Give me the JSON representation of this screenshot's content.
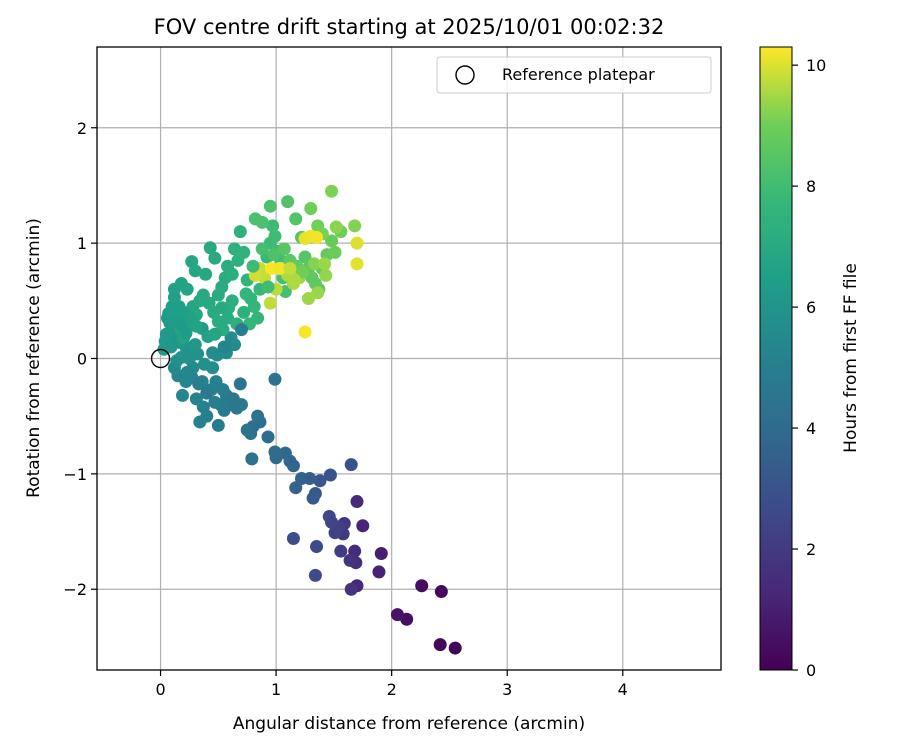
{
  "chart_data": {
    "type": "scatter",
    "title": "FOV centre drift starting at 2025/10/01 00:02:32",
    "xlabel": "Angular distance from reference (arcmin)",
    "ylabel": "Rotation from reference (arcmin)",
    "xlim": [
      -0.55,
      4.85
    ],
    "ylim": [
      -2.7,
      2.7
    ],
    "xticks": [
      0,
      1,
      2,
      3,
      4
    ],
    "yticks": [
      -2,
      -1,
      0,
      1,
      2
    ],
    "grid": true,
    "legend": {
      "placement": "top-right",
      "entries": [
        "Reference platepar"
      ]
    },
    "reference_point": {
      "x": 0,
      "y": 0,
      "label": "Reference platepar"
    },
    "colorbar": {
      "label": "Hours from first FF file",
      "colormap": "viridis",
      "range": [
        0,
        10.3
      ],
      "ticks": [
        0,
        2,
        4,
        6,
        8,
        10
      ]
    },
    "points": [
      [
        2.55,
        -2.51,
        0.1
      ],
      [
        2.42,
        -2.48,
        0.2
      ],
      [
        2.43,
        -2.02,
        0.3
      ],
      [
        2.26,
        -1.97,
        0.4
      ],
      [
        2.13,
        -2.26,
        0.5
      ],
      [
        2.05,
        -2.22,
        0.6
      ],
      [
        1.91,
        -1.69,
        1.0
      ],
      [
        1.89,
        -1.85,
        1.1
      ],
      [
        1.75,
        -1.45,
        1.2
      ],
      [
        1.7,
        -1.97,
        1.3
      ],
      [
        1.7,
        -1.24,
        1.4
      ],
      [
        1.68,
        -1.67,
        1.5
      ],
      [
        1.69,
        -1.77,
        1.6
      ],
      [
        1.65,
        -2.0,
        1.7
      ],
      [
        1.64,
        -1.75,
        1.8
      ],
      [
        1.59,
        -1.43,
        1.9
      ],
      [
        1.58,
        -1.52,
        2.0
      ],
      [
        1.56,
        -1.67,
        2.1
      ],
      [
        1.54,
        -1.46,
        2.2
      ],
      [
        1.51,
        -1.51,
        2.3
      ],
      [
        1.48,
        -1.42,
        2.4
      ],
      [
        1.46,
        -1.37,
        2.5
      ],
      [
        1.35,
        -1.63,
        2.6
      ],
      [
        1.34,
        -1.88,
        2.7
      ],
      [
        1.15,
        -1.56,
        2.8
      ],
      [
        1.65,
        -0.92,
        2.9
      ],
      [
        1.47,
        -1.01,
        3.0
      ],
      [
        1.38,
        -1.06,
        3.1
      ],
      [
        1.34,
        -1.17,
        3.2
      ],
      [
        1.32,
        -1.21,
        3.3
      ],
      [
        1.29,
        -1.04,
        3.4
      ],
      [
        1.22,
        -1.04,
        3.5
      ],
      [
        1.17,
        -1.12,
        3.6
      ],
      [
        1.15,
        -0.93,
        3.7
      ],
      [
        1.12,
        -0.89,
        3.8
      ],
      [
        1.08,
        -0.82,
        3.9
      ],
      [
        1.0,
        -0.86,
        4.0
      ],
      [
        0.99,
        -0.81,
        4.05
      ],
      [
        0.93,
        -0.68,
        4.1
      ],
      [
        0.86,
        -0.55,
        4.15
      ],
      [
        0.8,
        -0.59,
        4.2
      ],
      [
        0.79,
        -0.87,
        4.25
      ],
      [
        0.78,
        -0.65,
        4.3
      ],
      [
        0.84,
        -0.5,
        4.35
      ],
      [
        0.75,
        -0.62,
        4.4
      ],
      [
        0.99,
        -0.18,
        4.45
      ],
      [
        0.7,
        -0.4,
        4.5
      ],
      [
        0.69,
        -0.22,
        4.55
      ],
      [
        0.66,
        -0.43,
        4.6
      ],
      [
        0.6,
        -0.4,
        4.65
      ],
      [
        0.57,
        -0.32,
        4.7
      ],
      [
        0.55,
        -0.45,
        4.75
      ],
      [
        0.52,
        -0.4,
        4.8
      ],
      [
        0.5,
        -0.58,
        4.85
      ],
      [
        0.47,
        -0.38,
        4.9
      ],
      [
        0.44,
        -0.27,
        4.95
      ],
      [
        0.4,
        -0.5,
        5.0
      ],
      [
        0.37,
        -0.42,
        5.05
      ],
      [
        0.34,
        -0.55,
        5.1
      ],
      [
        0.36,
        -0.2,
        5.15
      ],
      [
        0.31,
        -0.35,
        5.2
      ],
      [
        0.27,
        -0.16,
        5.25
      ],
      [
        0.22,
        -0.2,
        5.3
      ],
      [
        0.19,
        -0.32,
        5.35
      ],
      [
        0.15,
        -0.15,
        5.4
      ],
      [
        0.12,
        -0.08,
        5.45
      ],
      [
        0.64,
        0.12,
        5.5
      ],
      [
        0.61,
        0.18,
        5.6
      ],
      [
        0.57,
        0.05,
        5.65
      ],
      [
        0.49,
        0.03,
        5.7
      ],
      [
        0.45,
        -0.08,
        5.75
      ],
      [
        0.38,
        -0.05,
        5.8
      ],
      [
        0.32,
        0.04,
        5.85
      ],
      [
        0.27,
        0.06,
        5.9
      ],
      [
        0.22,
        0.1,
        5.95
      ],
      [
        0.18,
        0.01,
        6.0
      ],
      [
        0.16,
        0.14,
        6.05
      ],
      [
        0.13,
        0.2,
        6.1
      ],
      [
        0.1,
        0.25,
        6.15
      ],
      [
        0.08,
        0.31,
        6.2
      ],
      [
        0.06,
        0.35,
        6.25
      ],
      [
        0.05,
        0.21,
        6.3
      ],
      [
        0.04,
        0.15,
        6.35
      ],
      [
        0.03,
        0.08,
        6.4
      ],
      [
        0.07,
        0.39,
        6.45
      ],
      [
        0.1,
        0.45,
        6.5
      ],
      [
        0.12,
        0.53,
        6.55
      ],
      [
        0.14,
        0.35,
        6.6
      ],
      [
        0.17,
        0.25,
        6.65
      ],
      [
        0.2,
        0.18,
        6.7
      ],
      [
        0.25,
        0.3,
        6.75
      ],
      [
        0.28,
        0.45,
        6.8
      ],
      [
        0.31,
        0.38,
        6.85
      ],
      [
        0.34,
        0.5,
        6.9
      ],
      [
        0.37,
        0.55,
        6.95
      ],
      [
        0.42,
        0.48,
        7.0
      ],
      [
        0.46,
        0.4,
        7.05
      ],
      [
        0.5,
        0.32,
        7.1
      ],
      [
        0.54,
        0.25,
        7.15
      ],
      [
        0.59,
        0.44,
        7.2
      ],
      [
        0.62,
        0.5,
        7.25
      ],
      [
        0.12,
        0.6,
        6.6
      ],
      [
        0.18,
        0.65,
        6.7
      ],
      [
        0.23,
        0.6,
        6.75
      ],
      [
        0.27,
        0.84,
        6.8
      ],
      [
        0.3,
        0.76,
        6.85
      ],
      [
        0.39,
        0.73,
        6.9
      ],
      [
        0.43,
        0.96,
        6.95
      ],
      [
        0.47,
        0.87,
        7.0
      ],
      [
        0.5,
        0.55,
        7.05
      ],
      [
        0.53,
        0.62,
        7.1
      ],
      [
        0.56,
        0.7,
        7.15
      ],
      [
        0.58,
        0.8,
        7.2
      ],
      [
        0.62,
        0.73,
        7.25
      ],
      [
        0.64,
        0.95,
        7.3
      ],
      [
        0.67,
        0.85,
        7.35
      ],
      [
        0.69,
        1.1,
        7.4
      ],
      [
        0.72,
        0.92,
        7.45
      ],
      [
        0.75,
        0.68,
        7.5
      ],
      [
        0.78,
        0.52,
        7.55
      ],
      [
        0.81,
        0.45,
        7.6
      ],
      [
        0.84,
        0.35,
        7.65
      ],
      [
        0.86,
        0.6,
        7.7
      ],
      [
        0.89,
        0.75,
        7.75
      ],
      [
        0.92,
        0.88,
        7.8
      ],
      [
        0.95,
        1.0,
        7.85
      ],
      [
        0.97,
        1.15,
        7.9
      ],
      [
        0.99,
        1.06,
        7.95
      ],
      [
        1.02,
        0.93,
        8.0
      ],
      [
        1.04,
        0.85,
        8.05
      ],
      [
        1.06,
        0.7,
        8.1
      ],
      [
        1.08,
        0.58,
        8.15
      ],
      [
        0.82,
        1.21,
        8.2
      ],
      [
        0.88,
        1.18,
        8.25
      ],
      [
        0.95,
        1.32,
        8.3
      ],
      [
        1.1,
        1.36,
        8.35
      ],
      [
        1.17,
        1.21,
        8.4
      ],
      [
        1.22,
        1.05,
        8.45
      ],
      [
        1.25,
        0.88,
        8.5
      ],
      [
        1.28,
        0.78,
        8.55
      ],
      [
        1.31,
        0.7,
        8.6
      ],
      [
        1.34,
        0.65,
        8.65
      ],
      [
        1.37,
        0.6,
        8.7
      ],
      [
        1.4,
        0.78,
        8.75
      ],
      [
        1.44,
        0.9,
        8.8
      ],
      [
        1.48,
        1.02,
        8.85
      ],
      [
        1.51,
        0.92,
        8.9
      ],
      [
        1.56,
        1.1,
        8.95
      ],
      [
        1.3,
        1.3,
        9.0
      ],
      [
        1.36,
        1.15,
        9.05
      ],
      [
        1.4,
        1.08,
        9.1
      ],
      [
        1.48,
        1.45,
        9.15
      ],
      [
        1.68,
        1.15,
        9.2
      ],
      [
        1.52,
        1.14,
        9.3
      ],
      [
        1.43,
        0.72,
        9.35
      ],
      [
        1.36,
        0.57,
        9.4
      ],
      [
        1.28,
        0.52,
        9.45
      ],
      [
        1.2,
        0.7,
        9.5
      ],
      [
        1.15,
        0.65,
        9.55
      ],
      [
        1.1,
        0.72,
        9.6
      ],
      [
        1.05,
        0.78,
        9.65
      ],
      [
        1.0,
        0.6,
        9.7
      ],
      [
        0.95,
        0.48,
        9.75
      ],
      [
        0.9,
        0.7,
        9.8
      ],
      [
        0.86,
        0.78,
        9.85
      ],
      [
        0.82,
        0.72,
        9.9
      ],
      [
        1.7,
        1.0,
        10.0
      ],
      [
        1.7,
        0.82,
        10.05
      ],
      [
        1.25,
        1.04,
        10.1
      ],
      [
        1.3,
        1.06,
        10.15
      ],
      [
        1.35,
        1.05,
        10.2
      ],
      [
        1.25,
        0.23,
        10.25
      ],
      [
        0.96,
        0.78,
        10.3
      ],
      [
        1.03,
        0.78,
        10.2
      ],
      [
        0.25,
        0.0,
        5.9
      ],
      [
        0.3,
        0.12,
        6.1
      ],
      [
        0.36,
        0.26,
        6.4
      ],
      [
        0.2,
        0.4,
        6.5
      ],
      [
        0.09,
        0.1,
        6.2
      ],
      [
        0.14,
        -0.02,
        5.8
      ],
      [
        0.41,
        0.19,
        6.6
      ],
      [
        0.47,
        0.21,
        6.8
      ],
      [
        0.53,
        0.44,
        7.0
      ],
      [
        0.58,
        0.35,
        7.1
      ],
      [
        0.66,
        0.3,
        7.3
      ],
      [
        0.72,
        0.4,
        7.4
      ],
      [
        0.77,
        0.3,
        7.7
      ],
      [
        0.74,
        0.56,
        7.6
      ],
      [
        0.8,
        0.8,
        7.9
      ],
      [
        0.88,
        0.95,
        8.1
      ],
      [
        0.93,
        0.62,
        8.0
      ],
      [
        0.98,
        0.9,
        8.3
      ],
      [
        1.07,
        0.95,
        8.5
      ],
      [
        1.12,
        0.85,
        8.6
      ],
      [
        1.18,
        0.8,
        8.8
      ],
      [
        1.23,
        0.75,
        9.0
      ],
      [
        1.33,
        0.82,
        9.2
      ],
      [
        1.42,
        0.82,
        9.4
      ],
      [
        1.16,
        0.68,
        9.6
      ],
      [
        1.12,
        0.78,
        9.8
      ],
      [
        0.7,
        0.25,
        4.9
      ],
      [
        0.55,
        0.1,
        5.3
      ],
      [
        0.45,
        0.05,
        5.6
      ],
      [
        0.28,
        -0.08,
        5.5
      ],
      [
        0.23,
        -0.12,
        5.4
      ],
      [
        0.33,
        -0.22,
        5.0
      ],
      [
        0.4,
        -0.3,
        4.7
      ],
      [
        0.48,
        -0.2,
        5.1
      ],
      [
        0.54,
        -0.27,
        4.9
      ],
      [
        0.63,
        -0.35,
        4.6
      ],
      [
        0.18,
        0.3,
        6.3
      ],
      [
        0.22,
        0.22,
        6.4
      ],
      [
        0.26,
        0.35,
        6.6
      ],
      [
        0.31,
        0.28,
        6.7
      ],
      [
        0.12,
        0.32,
        6.4
      ],
      [
        0.16,
        0.45,
        6.5
      ]
    ]
  }
}
